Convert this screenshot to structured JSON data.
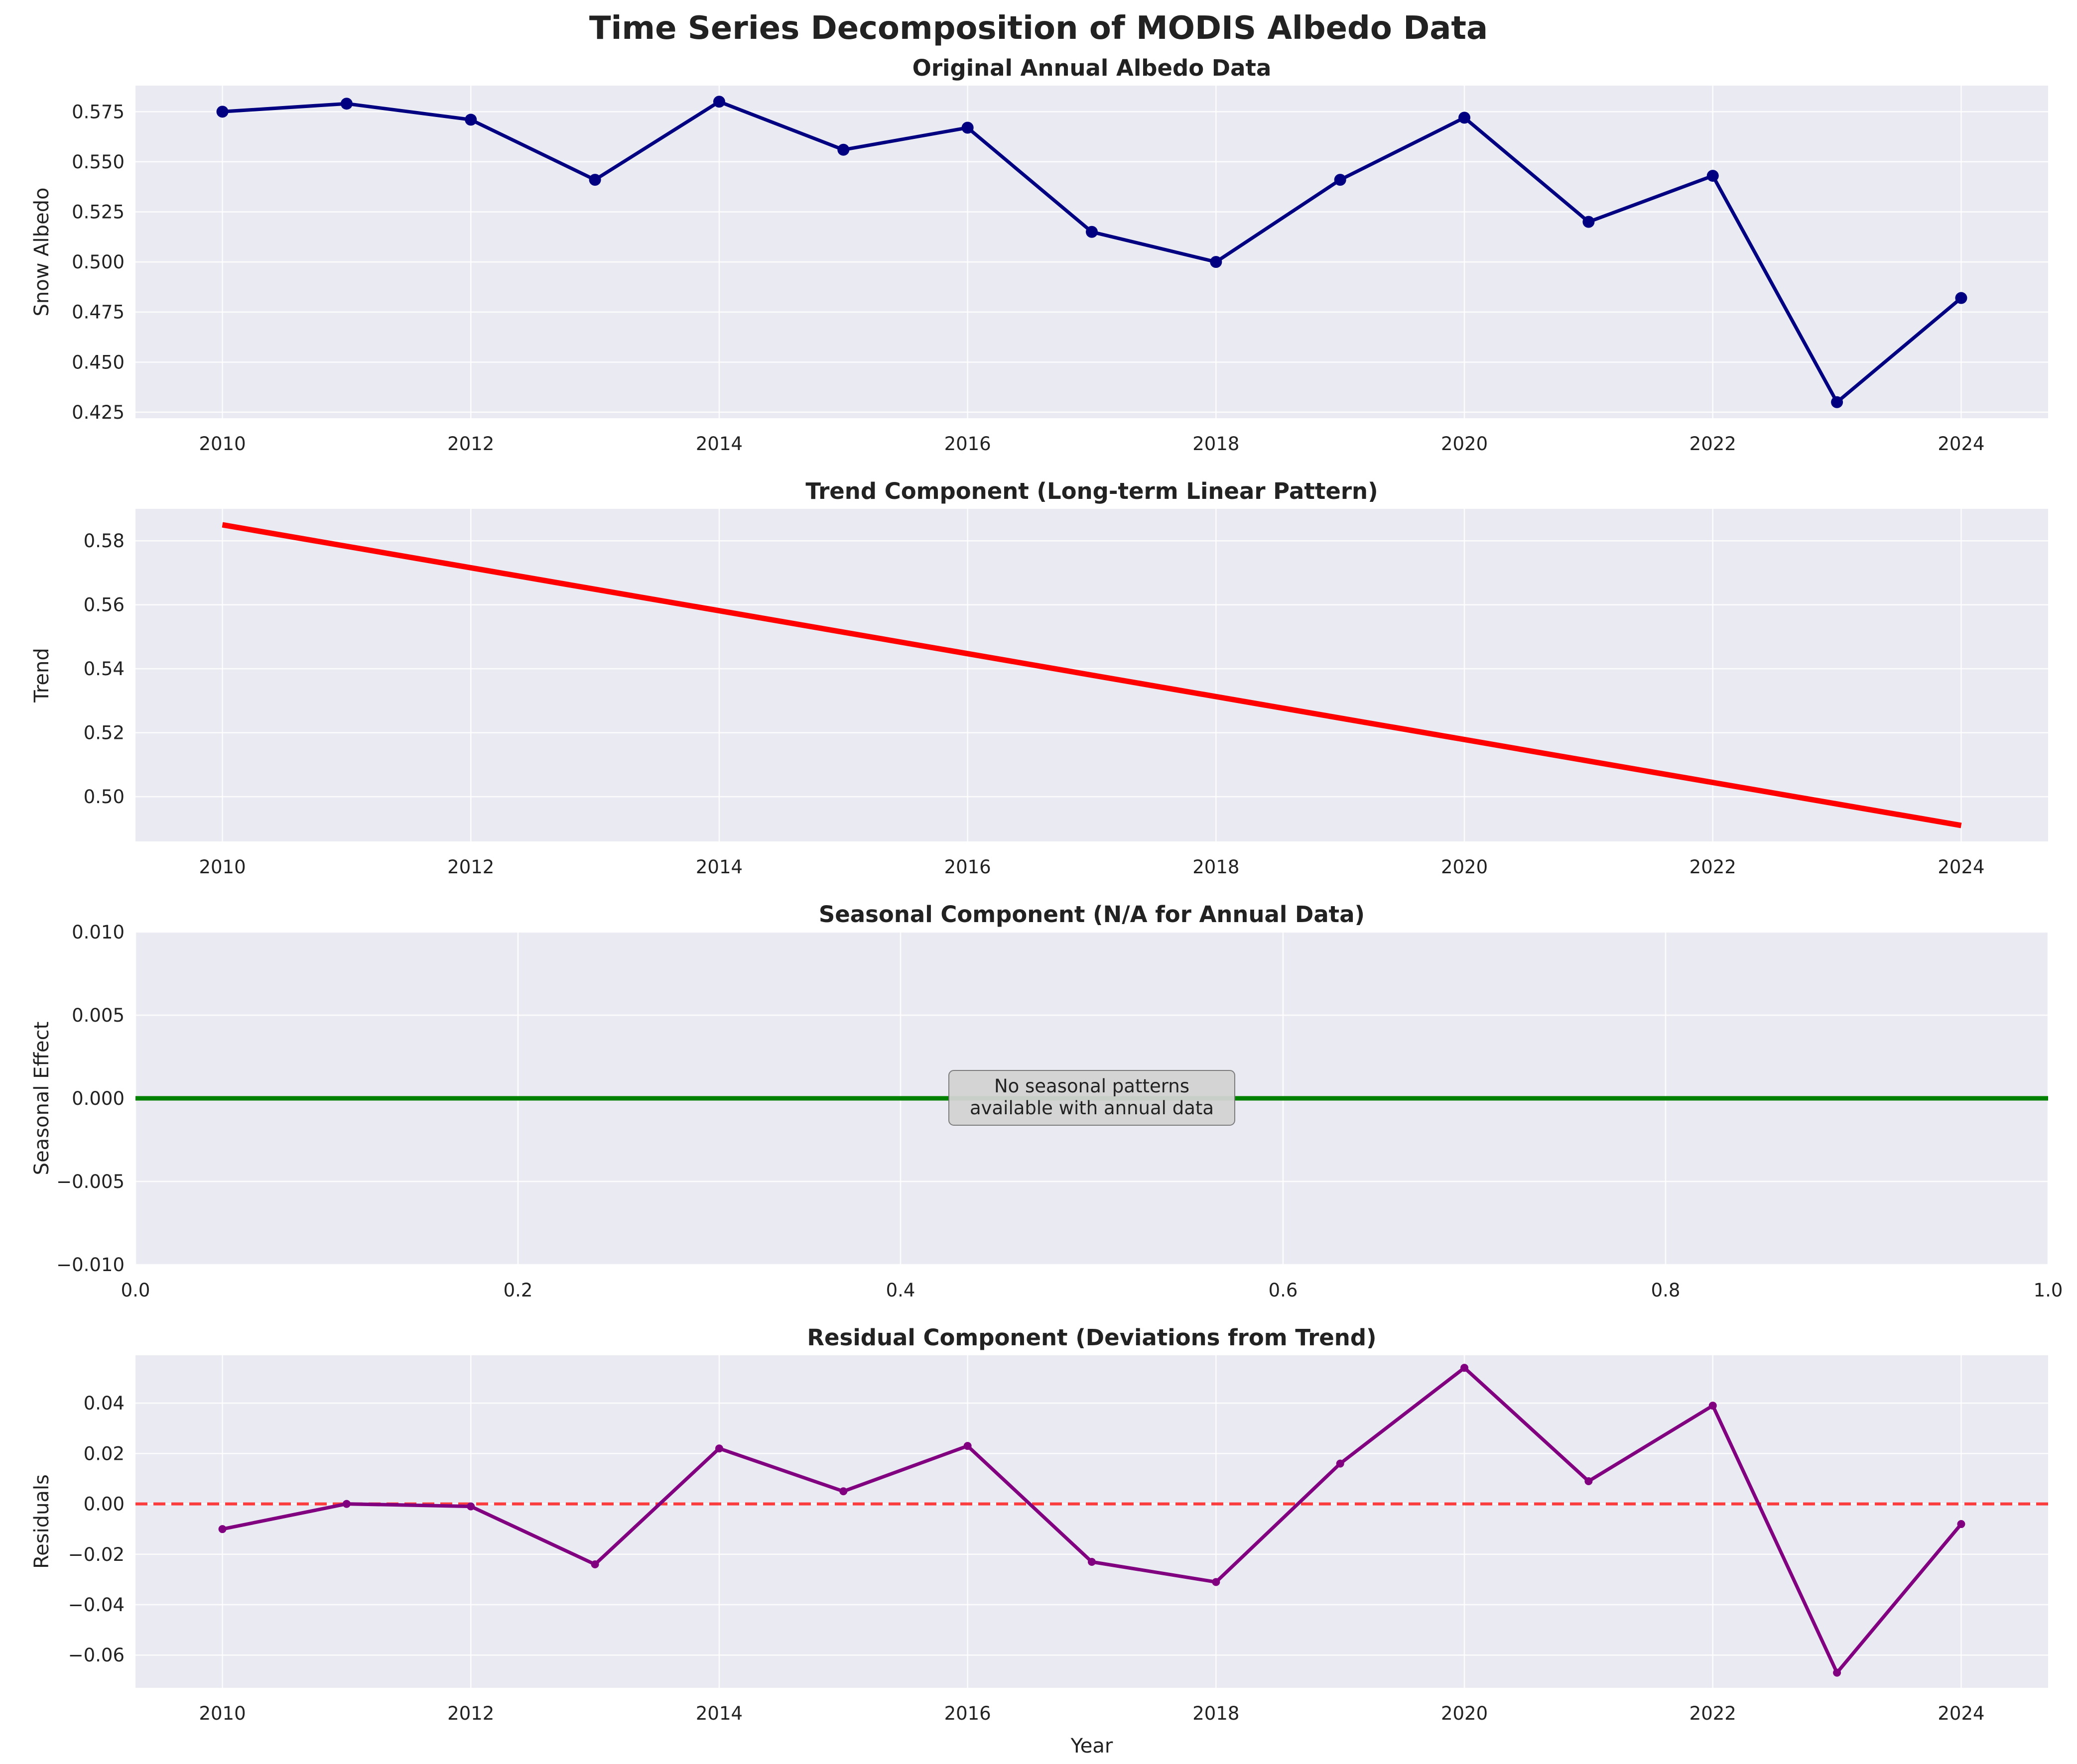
{
  "figure": {
    "title": "Time Series Decomposition of MODIS Albedo Data"
  },
  "chart_data": [
    {
      "type": "line",
      "title": "Original Annual Albedo Data",
      "xlabel": "",
      "ylabel": "Snow Albedo",
      "xlim": [
        2009.3,
        2024.7
      ],
      "ylim": [
        0.422,
        0.588
      ],
      "xticks": [
        "2010",
        "2012",
        "2014",
        "2016",
        "2018",
        "2020",
        "2022",
        "2024"
      ],
      "yticks": [
        "0.425",
        "0.450",
        "0.475",
        "0.500",
        "0.525",
        "0.550",
        "0.575"
      ],
      "grid": true,
      "series": [
        {
          "color": "#000080",
          "marker": "circle",
          "x": [
            2010,
            2011,
            2012,
            2013,
            2014,
            2015,
            2016,
            2017,
            2018,
            2019,
            2020,
            2021,
            2022,
            2023,
            2024
          ],
          "values": [
            0.575,
            0.579,
            0.571,
            0.541,
            0.58,
            0.556,
            0.567,
            0.515,
            0.5,
            0.541,
            0.572,
            0.52,
            0.543,
            0.43,
            0.482
          ]
        }
      ]
    },
    {
      "type": "line",
      "title": "Trend Component (Long-term Linear Pattern)",
      "xlabel": "",
      "ylabel": "Trend",
      "xlim": [
        2009.3,
        2024.7
      ],
      "ylim": [
        0.486,
        0.59
      ],
      "xticks": [
        "2010",
        "2012",
        "2014",
        "2016",
        "2018",
        "2020",
        "2022",
        "2024"
      ],
      "yticks": [
        "0.50",
        "0.52",
        "0.54",
        "0.56",
        "0.58"
      ],
      "grid": true,
      "series": [
        {
          "color": "#ff0000",
          "x": [
            2010,
            2024
          ],
          "values": [
            0.585,
            0.491
          ]
        }
      ]
    },
    {
      "type": "line",
      "title": "Seasonal Component (N/A for Annual Data)",
      "xlabel": "",
      "ylabel": "Seasonal Effect",
      "xlim": [
        0.0,
        1.0
      ],
      "ylim": [
        -0.01,
        0.01
      ],
      "xticks": [
        "0.0",
        "0.2",
        "0.4",
        "0.6",
        "0.8",
        "1.0"
      ],
      "yticks": [
        "−0.010",
        "−0.005",
        "0.000",
        "0.005",
        "0.010"
      ],
      "grid": true,
      "hline": {
        "y": 0.0,
        "color": "#008000"
      },
      "annotation": "No seasonal patterns\navailable with annual data"
    },
    {
      "type": "line",
      "title": "Residual Component (Deviations from Trend)",
      "xlabel": "Year",
      "ylabel": "Residuals",
      "xlim": [
        2009.3,
        2024.7
      ],
      "ylim": [
        -0.073,
        0.059
      ],
      "xticks": [
        "2010",
        "2012",
        "2014",
        "2016",
        "2018",
        "2020",
        "2022",
        "2024"
      ],
      "yticks": [
        "−0.06",
        "−0.04",
        "−0.02",
        "0.00",
        "0.02",
        "0.04"
      ],
      "grid": true,
      "hline": {
        "y": 0.0,
        "color": "#ff0000",
        "style": "dashed"
      },
      "series": [
        {
          "color": "#800080",
          "marker": "circle",
          "x": [
            2010,
            2011,
            2012,
            2013,
            2014,
            2015,
            2016,
            2017,
            2018,
            2019,
            2020,
            2021,
            2022,
            2023,
            2024
          ],
          "values": [
            -0.01,
            0.0,
            -0.001,
            -0.024,
            0.022,
            0.005,
            0.023,
            -0.023,
            -0.031,
            0.016,
            0.054,
            0.009,
            0.039,
            -0.067,
            -0.008
          ]
        }
      ]
    }
  ]
}
